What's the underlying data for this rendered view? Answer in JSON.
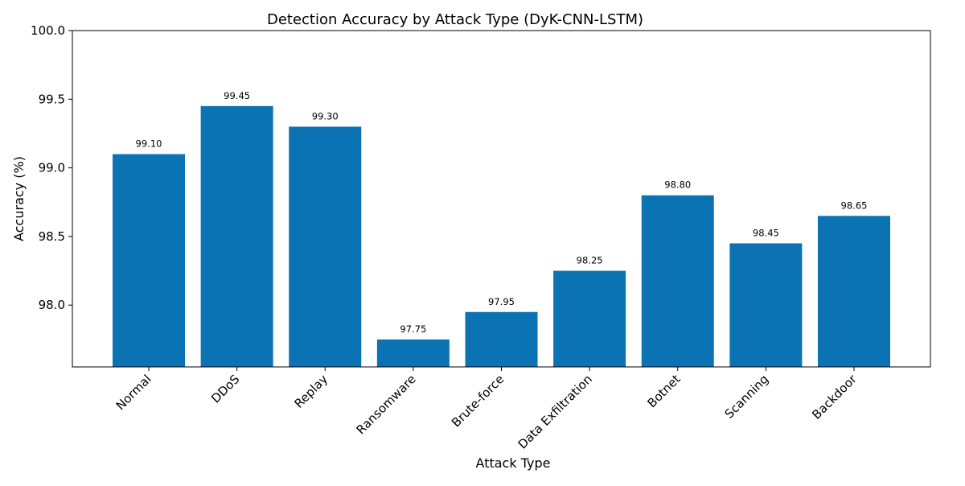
{
  "chart_data": {
    "type": "bar",
    "title": "Detection Accuracy by Attack Type (DyK-CNN-LSTM)",
    "xlabel": "Attack Type",
    "ylabel": "Accuracy (%)",
    "categories": [
      "Normal",
      "DDoS",
      "Replay",
      "Ransomware",
      "Brute-force",
      "Data Exfiltration",
      "Botnet",
      "Scanning",
      "Backdoor"
    ],
    "values": [
      99.1,
      99.45,
      99.3,
      97.75,
      97.95,
      98.25,
      98.8,
      98.45,
      98.65
    ],
    "value_labels": [
      "99.10",
      "99.45",
      "99.30",
      "97.75",
      "97.95",
      "98.25",
      "98.80",
      "98.45",
      "98.65"
    ],
    "ylim": [
      97.55,
      100.0
    ],
    "yticks": [
      98.0,
      98.5,
      99.0,
      99.5,
      100.0
    ],
    "ytick_labels": [
      "98.0",
      "98.5",
      "99.0",
      "99.5",
      "100.0"
    ],
    "grid": false,
    "bar_color": "#0b72b4"
  }
}
